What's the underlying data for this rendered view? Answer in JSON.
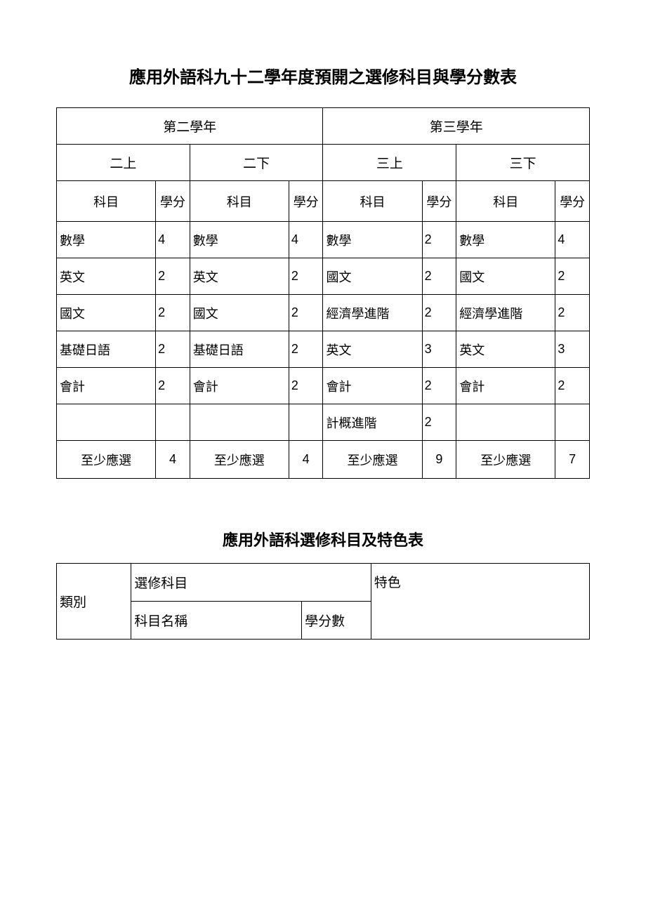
{
  "table1": {
    "title": "應用外語科九十二學年度預開之選修科目與學分數表",
    "year_headers": [
      "第二學年",
      "第三學年"
    ],
    "sem_headers": [
      "二上",
      "二下",
      "三上",
      "三下"
    ],
    "col_headers": {
      "subject": "科目",
      "credit": "學分"
    },
    "rows": [
      [
        {
          "s": "數學",
          "c": "4"
        },
        {
          "s": "數學",
          "c": "4"
        },
        {
          "s": "數學",
          "c": "2"
        },
        {
          "s": "數學",
          "c": "4"
        }
      ],
      [
        {
          "s": "英文",
          "c": "2"
        },
        {
          "s": "英文",
          "c": "2"
        },
        {
          "s": "國文",
          "c": "2"
        },
        {
          "s": "國文",
          "c": "2"
        }
      ],
      [
        {
          "s": "國文",
          "c": "2"
        },
        {
          "s": "國文",
          "c": "2"
        },
        {
          "s": "經濟學進階",
          "c": "2"
        },
        {
          "s": "經濟學進階",
          "c": "2"
        }
      ],
      [
        {
          "s": "基礎日語",
          "c": "2"
        },
        {
          "s": "基礎日語",
          "c": "2"
        },
        {
          "s": "英文",
          "c": "3"
        },
        {
          "s": "英文",
          "c": "3"
        }
      ],
      [
        {
          "s": "會計",
          "c": "2"
        },
        {
          "s": "會計",
          "c": "2"
        },
        {
          "s": "會計",
          "c": "2"
        },
        {
          "s": "會計",
          "c": "2"
        }
      ],
      [
        {
          "s": "",
          "c": ""
        },
        {
          "s": "",
          "c": ""
        },
        {
          "s": "計概進階",
          "c": "2"
        },
        {
          "s": "",
          "c": ""
        }
      ]
    ],
    "footer_label": "至少應選",
    "footer_values": [
      "4",
      "4",
      "9",
      "7"
    ],
    "col_widths": {
      "subject_pct": 18.6,
      "credit_pct": 6.4
    }
  },
  "table2": {
    "title": "應用外語科選修科目及特色表",
    "headers": {
      "category": "類別",
      "elective": "選修科目",
      "feature": "特色",
      "subject_name": "科目名稱",
      "credits": "學分數"
    },
    "col_widths_pct": [
      14,
      32,
      13,
      41
    ]
  },
  "style": {
    "text_color": "#000000",
    "border_color": "#000000",
    "background": "#ffffff"
  }
}
